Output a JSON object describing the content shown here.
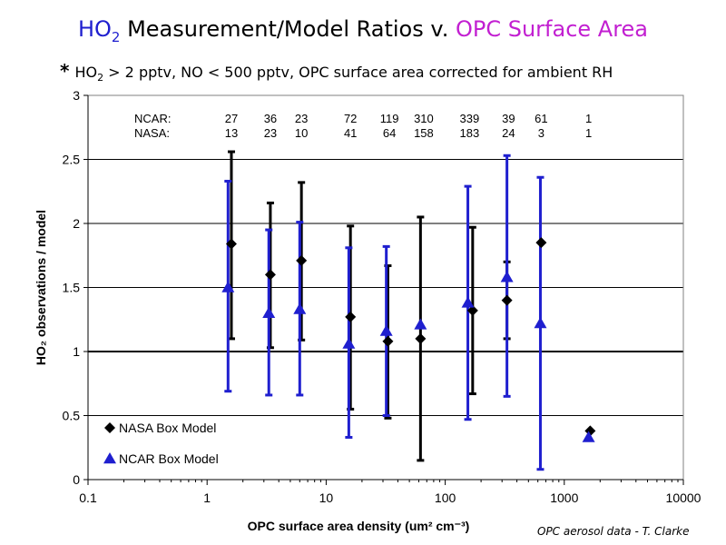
{
  "title": {
    "prefix": "HO",
    "prefix_sub": "2",
    "middle": " Measurement/Model Ratios v. ",
    "highlight": "OPC Surface Area"
  },
  "subtitle": {
    "star": "*",
    "part1": "HO",
    "sub": "2",
    "part2": " > 2 pptv, NO < 500 pptv, OPC surface area corrected for ambient RH"
  },
  "credit": "OPC aerosol data - T. Clarke",
  "colors": {
    "nasa": "#000000",
    "ncar": "#1f1fcf",
    "title_blue": "#1f1fcf",
    "title_magenta": "#c21fd1"
  },
  "chart_data": {
    "type": "scatter",
    "xscale": "log",
    "xlim": [
      0.1,
      10000
    ],
    "ylim": [
      0,
      3
    ],
    "xlabel": "OPC surface area density (um² cm⁻³)",
    "ylabel": "HO₂ observations / model",
    "xticks": [
      0.1,
      1,
      10,
      100,
      1000,
      10000
    ],
    "xtick_labels": [
      "0.1",
      "1",
      "10",
      "100",
      "1000",
      "10000"
    ],
    "yticks": [
      0,
      0.5,
      1,
      1.5,
      2,
      2.5,
      3
    ],
    "ytick_labels": [
      "0",
      "0.5",
      "1",
      "1.5",
      "2",
      "2.5",
      "3"
    ],
    "reference_line": 1,
    "legend_position": "bottom-left",
    "counts": {
      "ncar_label": "NCAR:",
      "nasa_label": "NASA:",
      "x": [
        1.6,
        3.4,
        6.2,
        16,
        34,
        66,
        160,
        340,
        640,
        1600
      ],
      "ncar": [
        "27",
        "36",
        "23",
        "72",
        "119",
        "310",
        "339",
        "39",
        "61",
        "1"
      ],
      "nasa": [
        "13",
        "23",
        "10",
        "41",
        "64",
        "158",
        "183",
        "24",
        "3",
        "1"
      ]
    },
    "series": [
      {
        "name": "NASA Box Model",
        "marker": "diamond",
        "x": [
          1.6,
          3.4,
          6.2,
          16,
          33,
          62,
          170,
          330,
          640,
          1650
        ],
        "y": [
          1.84,
          1.6,
          1.71,
          1.27,
          1.08,
          1.1,
          1.32,
          1.4,
          1.85,
          0.38
        ],
        "lo": [
          1.1,
          1.03,
          1.09,
          0.55,
          0.48,
          0.15,
          0.67,
          1.1,
          null,
          null
        ],
        "hi": [
          2.56,
          2.16,
          2.32,
          1.98,
          1.67,
          2.05,
          1.97,
          1.7,
          null,
          null
        ]
      },
      {
        "name": "NCAR Box Model",
        "marker": "triangle",
        "x": [
          1.5,
          3.3,
          6.0,
          15.5,
          32,
          62,
          155,
          330,
          630,
          1600
        ],
        "y": [
          1.5,
          1.3,
          1.33,
          1.06,
          1.16,
          1.21,
          1.38,
          1.58,
          1.22,
          0.33
        ],
        "lo": [
          0.69,
          0.66,
          0.66,
          0.33,
          0.5,
          null,
          0.47,
          0.65,
          0.08,
          null
        ],
        "hi": [
          2.33,
          1.95,
          2.01,
          1.81,
          1.82,
          null,
          2.29,
          2.53,
          2.36,
          null
        ]
      }
    ]
  }
}
